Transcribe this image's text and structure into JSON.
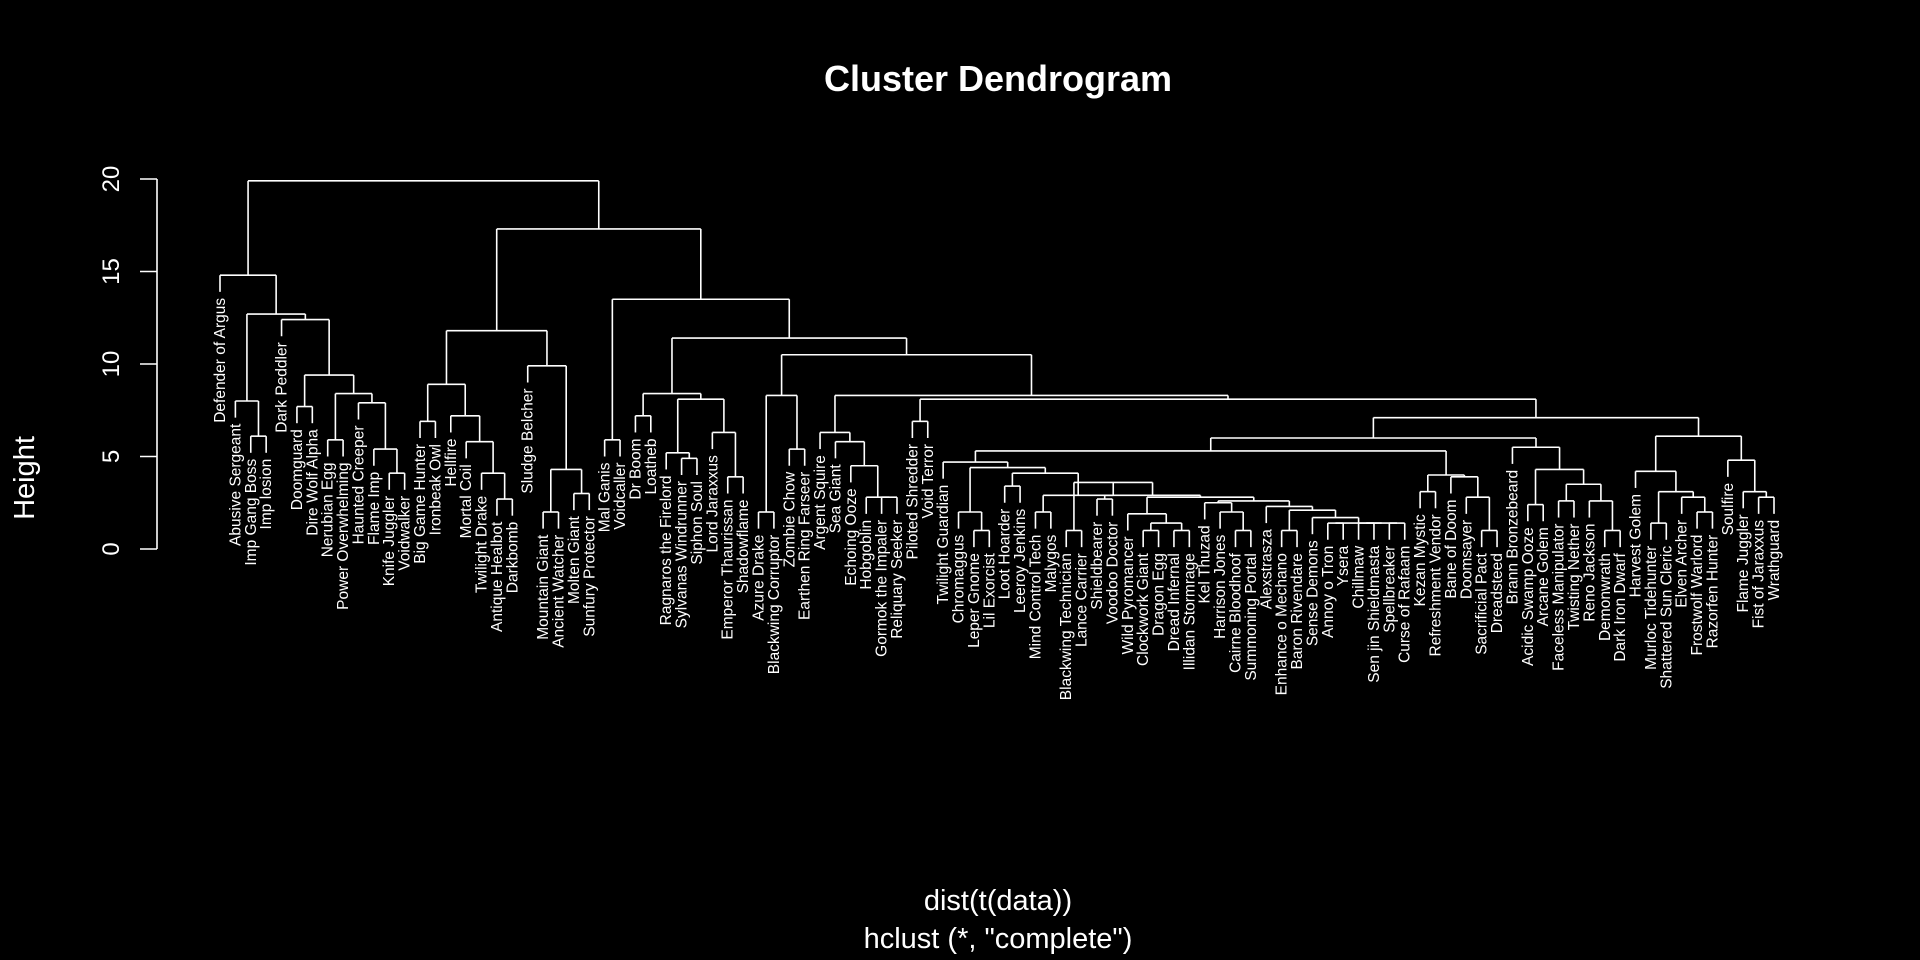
{
  "chart_data": {
    "type": "dendrogram",
    "title": "Cluster Dendrogram",
    "ylabel": "Height",
    "xlabel": "dist(t(data))",
    "sub": "hclust (*, \"complete\")",
    "ylim": [
      0,
      20
    ],
    "yticks": [
      0,
      5,
      10,
      15,
      20
    ],
    "background": "#000000",
    "foreground": "#ffffff",
    "labels": [
      "Defender of Argus",
      "Abusive Sergeant",
      "Imp Gang Boss",
      "Imp losion",
      "Dark Peddler",
      "Doomguard",
      "Dire Wolf Alpha",
      "Nerubian Egg",
      "Power Overwhelming",
      "Haunted Creeper",
      "Flame Imp",
      "Knife Juggler",
      "Voidwalker",
      "Big Game Hunter",
      "Ironbeak Owl",
      "Hellfire",
      "Mortal Coil",
      "Twilight Drake",
      "Antique Healbot",
      "Darkbomb",
      "Sludge Belcher",
      "Mountain Giant",
      "Ancient Watcher",
      "Molten Giant",
      "Sunfury Protector",
      "Mal Ganis",
      "Voidcaller",
      "Dr Boom",
      "Loatheb",
      "Ragnaros the Firelord",
      "Sylvanas Windrunner",
      "Siphon Soul",
      "Lord Jaraxxus",
      "Emperor Thaurissan",
      "Shadowflame",
      "Azure Drake",
      "Blackwing Corruptor",
      "Zombie Chow",
      "Earthen Ring Farseer",
      "Argent Squire",
      "Sea Giant",
      "Echoing Ooze",
      "Hobgoblin",
      "Gormok the Impaler",
      "Reliquary Seeker",
      "Piloted Shredder",
      "Void Terror",
      "Twilight Guardian",
      "Chromaggus",
      "Leper Gnome",
      "Lil Exorcist",
      "Loot Hoarder",
      "Leeroy Jenkins",
      "Mind Control Tech",
      "Malygos",
      "Blackwing Technician",
      "Lance Carrier",
      "Shieldbearer",
      "Voodoo Doctor",
      "Wild Pyromancer",
      "Clockwork Giant",
      "Dragon Egg",
      "Dread Infernal",
      "Illidan Stormrage",
      "Kel Thuzad",
      "Harrison Jones",
      "Cairne Bloodhoof",
      "Summoning Portal",
      "Alexstrasza",
      "Enhance o Mechano",
      "Baron Rivendare",
      "Sense Demons",
      "Annoy o Tron",
      "Ysera",
      "Chillmaw",
      "Sen jin Shieldmasta",
      "Spellbreaker",
      "Curse of Rafaam",
      "Kezan Mystic",
      "Refreshment Vendor",
      "Bane of Doom",
      "Doomsayer",
      "Sacrificial Pact",
      "Dreadsteed",
      "Brann Bronzebeard",
      "Acidic Swamp Ooze",
      "Arcane Golem",
      "Faceless Manipulator",
      "Twisting Nether",
      "Reno Jackson",
      "Demonwrath",
      "Dark Iron Dwarf",
      "Harvest Golem",
      "Murloc Tidehunter",
      "Shattered Sun Cleric",
      "Elven Archer",
      "Frostwolf Warlord",
      "Razorfen Hunter",
      "Soulfire",
      "Flame Juggler",
      "Fist of Jaraxxus",
      "Wrathguard"
    ],
    "tree": [
      19.9,
      [
        14.8,
        "Defender of Argus",
        [
          12.7,
          [
            8.0,
            "Abusive Sergeant",
            [
              6.1,
              "Imp Gang Boss",
              "Imp losion"
            ]
          ],
          [
            12.4,
            "Dark Peddler",
            [
              9.4,
              [
                7.7,
                "Doomguard",
                "Dire Wolf Alpha"
              ],
              [
                8.4,
                [
                  5.9,
                  "Nerubian Egg",
                  "Power Overwhelming"
                ],
                [
                  7.9,
                  "Haunted Creeper",
                  [
                    5.4,
                    "Flame Imp",
                    [
                      4.1,
                      "Knife Juggler",
                      "Voidwalker"
                    ]
                  ]
                ]
              ]
            ]
          ]
        ]
      ],
      [
        17.3,
        [
          11.8,
          [
            8.9,
            [
              6.9,
              "Big Game Hunter",
              "Ironbeak Owl"
            ],
            [
              7.2,
              "Hellfire",
              [
                5.8,
                "Mortal Coil",
                [
                  4.1,
                  "Twilight Drake",
                  [
                    2.7,
                    "Antique Healbot",
                    "Darkbomb"
                  ]
                ]
              ]
            ]
          ],
          [
            9.9,
            "Sludge Belcher",
            [
              4.3,
              [
                2.0,
                "Mountain Giant",
                "Ancient Watcher"
              ],
              [
                3.0,
                "Molten Giant",
                "Sunfury Protector"
              ]
            ]
          ]
        ],
        [
          13.5,
          [
            5.9,
            "Mal Ganis",
            "Voidcaller"
          ],
          [
            11.4,
            [
              8.4,
              [
                7.2,
                "Dr Boom",
                "Loatheb"
              ],
              [
                8.1,
                [
                  5.2,
                  "Ragnaros the Firelord",
                  [
                    4.9,
                    "Sylvanas Windrunner",
                    "Siphon Soul"
                  ]
                ],
                [
                  6.3,
                  "Lord Jaraxxus",
                  [
                    3.9,
                    "Emperor Thaurissan",
                    "Shadowflame"
                  ]
                ]
              ]
            ],
            [
              10.5,
              [
                8.3,
                [
                  2.0,
                  "Azure Drake",
                  "Blackwing Corruptor"
                ],
                [
                  5.4,
                  "Zombie Chow",
                  "Earthen Ring Farseer"
                ]
              ],
              [
                8.3,
                [
                  6.3,
                  "Argent Squire",
                  [
                    5.8,
                    "Sea Giant",
                    [
                      4.5,
                      "Echoing Ooze",
                      [
                        2.8,
                        "Hobgoblin",
                        [
                          2.8,
                          "Gormok the Impaler",
                          "Reliquary Seeker"
                        ]
                      ]
                    ]
                  ]
                ],
                [
                  8.1,
                  [
                    6.9,
                    "Piloted Shredder",
                    "Void Terror"
                  ],
                  [
                    7.1,
                    [
                      6.0,
                      [
                        5.3,
                        [
                          4.7,
                          "Twilight Guardian",
                          [
                            4.4,
                            [
                              2.0,
                              "Chromaggus",
                              [
                                1.0,
                                "Leper Gnome",
                                "Lil Exorcist"
                              ]
                            ],
                            [
                              4.1,
                              [
                                3.4,
                                "Loot Hoarder",
                                "Leeroy Jenkins"
                              ],
                              [
                                2.9,
                                [
                                  2.0,
                                  "Mind Control Tech",
                                  "Malygos"
                                ],
                                [
                                  3.6,
                                  [
                                    1.0,
                                    "Blackwing Technician",
                                    "Lance Carrier"
                                  ],
                                  [
                                    2.9,
                                    [
                                      2.7,
                                      "Shieldbearer",
                                      "Voodoo Doctor"
                                    ],
                                    [
                                      2.8,
                                      [
                                        1.9,
                                        "Wild Pyromancer",
                                        [
                                          1.4,
                                          [
                                            1.0,
                                            "Clockwork Giant",
                                            "Dragon Egg"
                                          ],
                                          [
                                            1.0,
                                            "Dread Infernal",
                                            "Illidan Stormrage"
                                          ]
                                        ]
                                      ],
                                      [
                                        2.6,
                                        [
                                          2.5,
                                          "Kel Thuzad",
                                          [
                                            2.0,
                                            "Harrison Jones",
                                            [
                                              1.0,
                                              "Cairne Bloodhoof",
                                              "Summoning Portal"
                                            ]
                                          ]
                                        ],
                                        [
                                          2.3,
                                          "Alexstrasza",
                                          [
                                            2.1,
                                            [
                                              1.0,
                                              "Enhance o Mechano",
                                              "Baron Rivendare"
                                            ],
                                            [
                                              1.7,
                                              "Sense Demons",
                                              [
                                                1.4,
                                                [
                                                  1.4,
                                                  "Annoy o Tron",
                                                  "Ysera"
                                                ],
                                                [
                                                  1.4,
                                                  [
                                                    1.4,
                                                    "Chillmaw",
                                                    "Sen jin Shieldmasta"
                                                  ],
                                                  [
                                                    1.4,
                                                    "Spellbreaker",
                                                    "Curse of Rafaam"
                                                  ]
                                                ]
                                              ]
                                            ]
                                          ]
                                        ]
                                      ]
                                    ]
                                  ]
                                ]
                              ]
                            ]
                          ]
                        ],
                        [
                          4.0,
                          [
                            3.1,
                            "Kezan Mystic",
                            "Refreshment Vendor"
                          ],
                          [
                            3.9,
                            "Bane of Doom",
                            [
                              2.8,
                              "Doomsayer",
                              [
                                1.0,
                                "Sacrificial Pact",
                                "Dreadsteed"
                              ]
                            ]
                          ]
                        ]
                      ],
                      [
                        5.5,
                        "Brann Bronzebeard",
                        [
                          4.3,
                          [
                            2.4,
                            "Acidic Swamp Ooze",
                            "Arcane Golem"
                          ],
                          [
                            3.5,
                            [
                              2.6,
                              "Faceless Manipulator",
                              "Twisting Nether"
                            ],
                            [
                              2.6,
                              "Reno Jackson",
                              [
                                1.0,
                                "Demonwrath",
                                "Dark Iron Dwarf"
                              ]
                            ]
                          ]
                        ]
                      ]
                    ],
                    [
                      6.1,
                      [
                        4.2,
                        "Harvest Golem",
                        [
                          3.1,
                          [
                            1.4,
                            "Murloc Tidehunter",
                            "Shattered Sun Cleric"
                          ],
                          [
                            2.8,
                            "Elven Archer",
                            [
                              2.0,
                              "Frostwolf Warlord",
                              "Razorfen Hunter"
                            ]
                          ]
                        ]
                      ],
                      [
                        4.8,
                        "Soulfire",
                        [
                          3.1,
                          "Flame Juggler",
                          [
                            2.8,
                            "Fist of Jaraxxus",
                            "Wrathguard"
                          ]
                        ]
                      ]
                    ]
                  ]
                ]
              ]
            ]
          ]
        ]
      ]
    ]
  }
}
